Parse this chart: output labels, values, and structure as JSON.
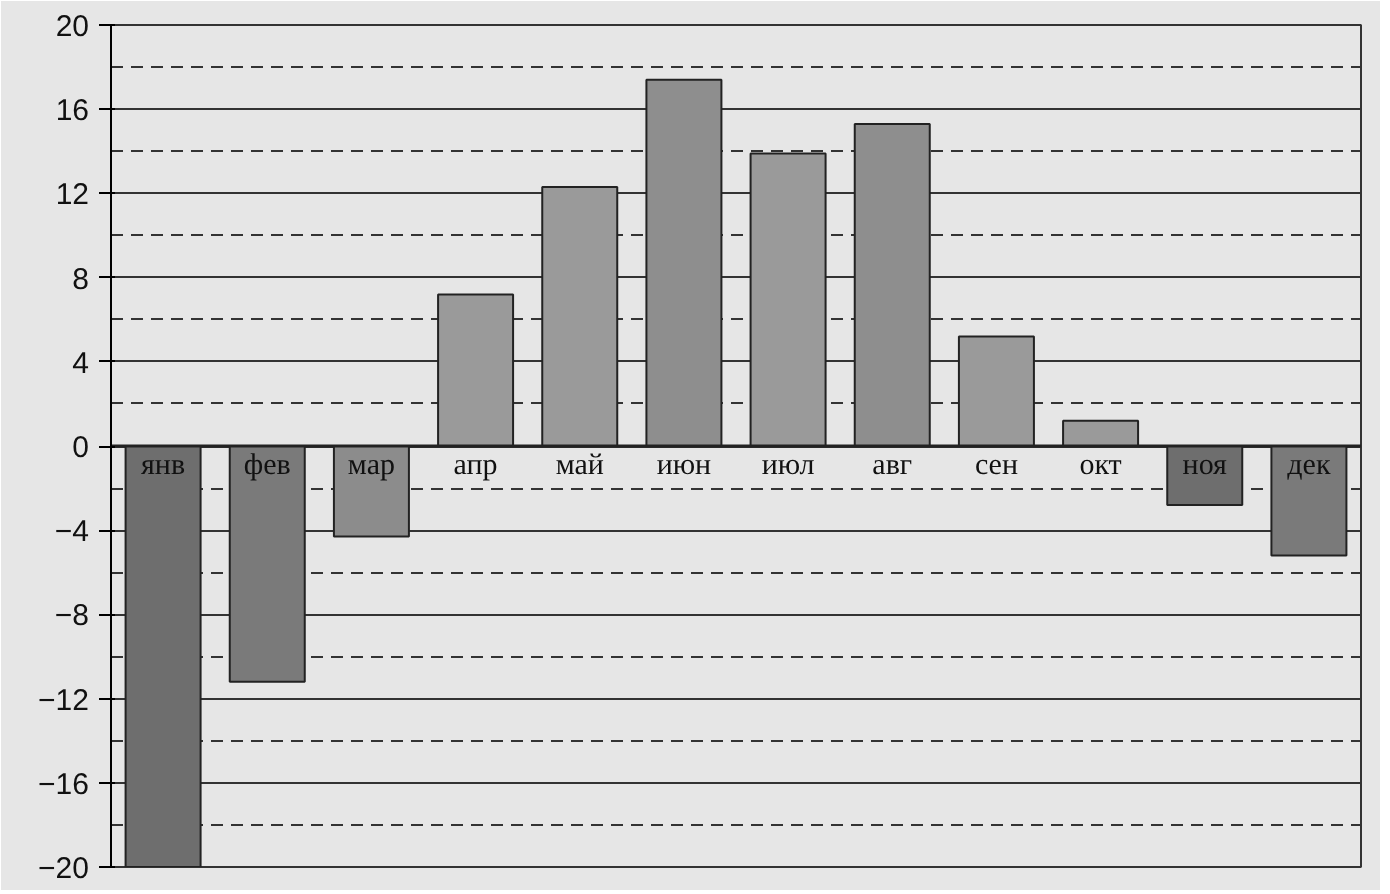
{
  "chart_data": {
    "type": "bar",
    "categories": [
      "янв",
      "фев",
      "мар",
      "апр",
      "май",
      "июн",
      "июл",
      "авг",
      "сен",
      "окт",
      "ноя",
      "дек"
    ],
    "values": [
      -20,
      -11.2,
      -4.3,
      7.2,
      12.3,
      17.4,
      13.9,
      15.3,
      5.2,
      1.2,
      -2.8,
      -5.2
    ],
    "colors": [
      "#6e6e6e",
      "#7a7a7a",
      "#8c8c8c",
      "#9a9a9a",
      "#9a9a9a",
      "#8e8e8e",
      "#9a9a9a",
      "#8e8e8e",
      "#9a9a9a",
      "#9a9a9a",
      "#6e6e6e",
      "#7a7a7a"
    ],
    "ylim": [
      -20,
      20
    ],
    "yticks": [
      -20,
      -16,
      -12,
      -8,
      -4,
      0,
      4,
      8,
      12,
      16,
      20
    ],
    "grid": "y"
  }
}
